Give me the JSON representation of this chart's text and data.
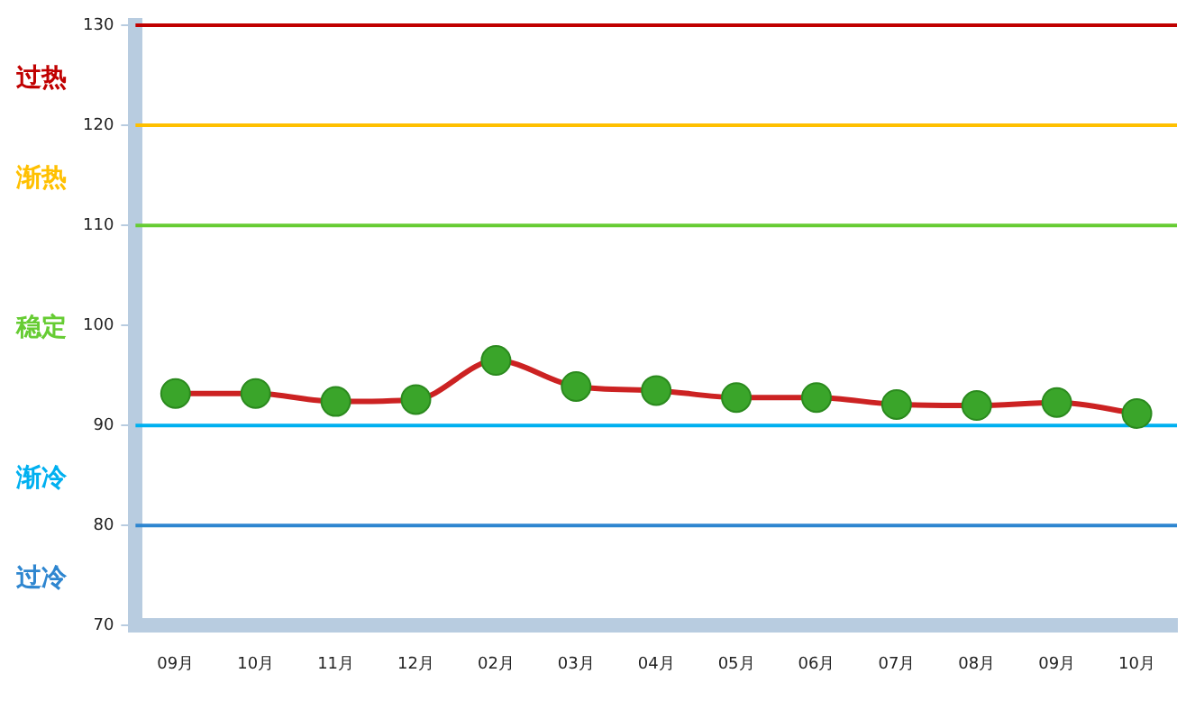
{
  "chart_data": {
    "type": "line",
    "categories": [
      "09月",
      "10月",
      "11月",
      "12月",
      "02月",
      "03月",
      "04月",
      "05月",
      "06月",
      "07月",
      "08月",
      "09月",
      "10月"
    ],
    "series": [
      {
        "color": "#cc2222",
        "colors": [
          "#3aa52a",
          "#3aa52a",
          "#3aa52a",
          "#3aa52a",
          "#3aa52a",
          "#3aa52a",
          "#3aa52a",
          "#3aa52a",
          "#3aa52a",
          "#3aa52a",
          "#3aa52a",
          "#3aa52a",
          "#3aa52a"
        ],
        "values": [
          93.2,
          93.2,
          92.4,
          92.6,
          96.5,
          93.9,
          93.5,
          92.8,
          92.8,
          92.1,
          92.0,
          92.3,
          91.2
        ]
      }
    ],
    "ylim": [
      70,
      130
    ],
    "yticks": [
      70,
      80,
      90,
      100,
      110,
      120,
      130
    ],
    "grid": false,
    "legend": false,
    "marker": "circle",
    "line_style": "solid",
    "ref_lines": [
      {
        "axis": "y",
        "value": 130,
        "color": "#c00000"
      },
      {
        "axis": "y",
        "value": 120,
        "color": "#ffc000"
      },
      {
        "axis": "y",
        "value": 110,
        "color": "#66cc33"
      },
      {
        "axis": "y",
        "value": 90,
        "color": "#00b0f0"
      },
      {
        "axis": "y",
        "value": 80,
        "color": "#2e86d0"
      }
    ],
    "annotations": [
      "过热",
      "渐热",
      "稳定",
      "渐冷",
      "过冷"
    ]
  }
}
